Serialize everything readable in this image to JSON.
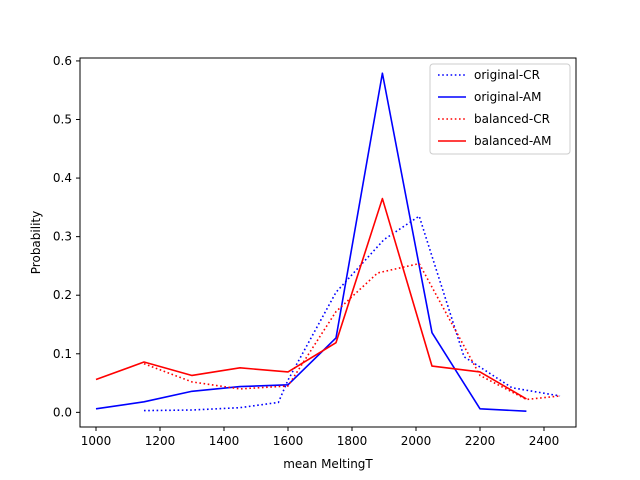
{
  "chart_data": {
    "type": "line",
    "title": "",
    "xlabel": "mean MeltingT",
    "ylabel": "Probability",
    "xlim": [
      950,
      2500
    ],
    "ylim": [
      -0.025,
      0.605
    ],
    "xticks": [
      1000,
      1200,
      1400,
      1600,
      1800,
      2000,
      2200,
      2400
    ],
    "xtick_labels": [
      "1000",
      "1200",
      "1400",
      "1600",
      "1800",
      "2000",
      "2200",
      "2400"
    ],
    "yticks": [
      0.0,
      0.1,
      0.2,
      0.3,
      0.4,
      0.5,
      0.6
    ],
    "ytick_labels": [
      "0.0",
      "0.1",
      "0.2",
      "0.3",
      "0.4",
      "0.5",
      "0.6"
    ],
    "grid": false,
    "legend_position": "top-right",
    "series": [
      {
        "name": "original-CR",
        "color": "#0000ff",
        "style": "dotted",
        "x": [
          1150,
          1300,
          1450,
          1570,
          1600,
          1750,
          1900,
          2010,
          2150,
          2300,
          2450
        ],
        "y": [
          0.003,
          0.004,
          0.008,
          0.017,
          0.055,
          0.205,
          0.295,
          0.335,
          0.095,
          0.042,
          0.028
        ]
      },
      {
        "name": "original-AM",
        "color": "#0000ff",
        "style": "solid",
        "x": [
          1000,
          1150,
          1300,
          1450,
          1600,
          1750,
          1895,
          2050,
          2200,
          2345
        ],
        "y": [
          0.006,
          0.018,
          0.036,
          0.044,
          0.047,
          0.127,
          0.579,
          0.136,
          0.006,
          0.002
        ]
      },
      {
        "name": "balanced-CR",
        "color": "#ff0000",
        "style": "dotted",
        "x": [
          1150,
          1300,
          1450,
          1600,
          1750,
          1880,
          2010,
          2200,
          2345,
          2450
        ],
        "y": [
          0.083,
          0.052,
          0.04,
          0.045,
          0.172,
          0.238,
          0.254,
          0.063,
          0.022,
          0.028
        ]
      },
      {
        "name": "balanced-AM",
        "color": "#ff0000",
        "style": "solid",
        "x": [
          1000,
          1150,
          1300,
          1450,
          1600,
          1750,
          1895,
          2050,
          2200,
          2345
        ],
        "y": [
          0.056,
          0.086,
          0.063,
          0.076,
          0.069,
          0.119,
          0.365,
          0.079,
          0.069,
          0.023
        ]
      }
    ]
  }
}
